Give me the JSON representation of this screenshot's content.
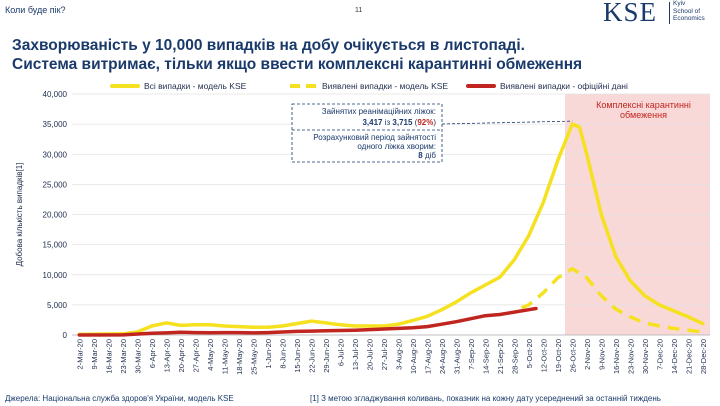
{
  "header": {
    "section": "Коли буде пік?",
    "page_number": "11"
  },
  "logo": {
    "mark": "KSE",
    "line1": "Kyiv",
    "line2": "School of",
    "line3": "Economics"
  },
  "title": {
    "line1": "Захворюваність у 10,000 випадків на добу очікується в листопаді.",
    "line2": "Система витримає, тільки якщо ввести комплексні карантинні обмеження"
  },
  "footer": {
    "source": "Джерела: Національна служба здоров'я України, модель KSE",
    "note": "[1] З метою згладжування коливань, показник на кожну дату усереднений за останній тиждень"
  },
  "chart_data": {
    "type": "line",
    "ylabel": "Добова кількість випадків[1]",
    "ylim": [
      0,
      40000
    ],
    "yticks": [
      0,
      5000,
      10000,
      15000,
      20000,
      25000,
      30000,
      35000,
      40000
    ],
    "ytick_labels": [
      "0",
      "5,000",
      "10,000",
      "15,000",
      "20,000",
      "25,000",
      "30,000",
      "35,000",
      "40,000"
    ],
    "x_tick_labels": [
      "2-Mar-20",
      "9-Mar-20",
      "16-Mar-20",
      "23-Mar-20",
      "30-Mar-20",
      "6-Apr-20",
      "13-Apr-20",
      "20-Apr-20",
      "27-Apr-20",
      "4-May-20",
      "11-May-20",
      "18-May-20",
      "25-May-20",
      "1-Jun-20",
      "8-Jun-20",
      "15-Jun-20",
      "22-Jun-20",
      "29-Jun-20",
      "6-Jul-20",
      "13-Jul-20",
      "20-Jul-20",
      "27-Jul-20",
      "3-Aug-20",
      "10-Aug-20",
      "17-Aug-20",
      "24-Aug-20",
      "31-Aug-20",
      "7-Sep-20",
      "14-Sep-20",
      "21-Sep-20",
      "28-Sep-20",
      "5-Oct-20",
      "12-Oct-20",
      "19-Oct-20",
      "26-Oct-20",
      "2-Nov-20",
      "9-Nov-20",
      "16-Nov-20",
      "23-Nov-20",
      "30-Nov-20",
      "7-Dec-20",
      "14-Dec-20",
      "21-Dec-20",
      "28-Dec-20"
    ],
    "legend_placement": "top",
    "series": [
      {
        "name": "Всі випадки - модель KSE",
        "color": "#f5e11f",
        "style": "solid",
        "points": [
          [
            0,
            100
          ],
          [
            3,
            200
          ],
          [
            4,
            500
          ],
          [
            5,
            1500
          ],
          [
            6,
            2000
          ],
          [
            7,
            1600
          ],
          [
            8,
            1700
          ],
          [
            9,
            1700
          ],
          [
            10,
            1500
          ],
          [
            11,
            1400
          ],
          [
            12,
            1300
          ],
          [
            13,
            1300
          ],
          [
            14,
            1500
          ],
          [
            15,
            1900
          ],
          [
            16,
            2300
          ],
          [
            17,
            2000
          ],
          [
            18,
            1700
          ],
          [
            19,
            1500
          ],
          [
            20,
            1500
          ],
          [
            21,
            1500
          ],
          [
            22,
            1800
          ],
          [
            23,
            2400
          ],
          [
            24,
            3100
          ],
          [
            25,
            4200
          ],
          [
            26,
            5500
          ],
          [
            27,
            7000
          ],
          [
            28,
            8300
          ],
          [
            29,
            9600
          ],
          [
            30,
            12500
          ],
          [
            31,
            16500
          ],
          [
            32,
            22000
          ],
          [
            33,
            29000
          ],
          [
            34,
            35000
          ],
          [
            34.5,
            34500
          ],
          [
            35,
            30000
          ],
          [
            36,
            20000
          ],
          [
            37,
            13000
          ],
          [
            38,
            9000
          ],
          [
            39,
            6500
          ],
          [
            40,
            5000
          ],
          [
            41,
            4000
          ],
          [
            42,
            3000
          ],
          [
            43,
            1900
          ]
        ]
      },
      {
        "name": "Виявлені випадки - модель KSE",
        "color": "#f5e11f",
        "style": "dashed",
        "points": [
          [
            30.5,
            4500
          ],
          [
            31,
            5000
          ],
          [
            32,
            7000
          ],
          [
            33,
            9500
          ],
          [
            34,
            11000
          ],
          [
            35,
            9500
          ],
          [
            36,
            6500
          ],
          [
            37,
            4300
          ],
          [
            38,
            3000
          ],
          [
            39,
            2000
          ],
          [
            40,
            1500
          ],
          [
            41,
            1100
          ],
          [
            42,
            800
          ],
          [
            43,
            500
          ]
        ]
      },
      {
        "name": "Виявлені випадки - офіційні дані",
        "color": "#c0261f",
        "style": "solid",
        "points": [
          [
            0,
            0
          ],
          [
            3,
            20
          ],
          [
            5,
            300
          ],
          [
            6,
            350
          ],
          [
            7,
            450
          ],
          [
            8,
            400
          ],
          [
            9,
            380
          ],
          [
            10,
            400
          ],
          [
            11,
            400
          ],
          [
            12,
            350
          ],
          [
            13,
            400
          ],
          [
            14,
            500
          ],
          [
            15,
            600
          ],
          [
            16,
            650
          ],
          [
            17,
            700
          ],
          [
            18,
            750
          ],
          [
            19,
            800
          ],
          [
            20,
            900
          ],
          [
            21,
            1000
          ],
          [
            22,
            1100
          ],
          [
            23,
            1200
          ],
          [
            24,
            1400
          ],
          [
            25,
            1800
          ],
          [
            26,
            2200
          ],
          [
            27,
            2700
          ],
          [
            28,
            3200
          ],
          [
            29,
            3400
          ],
          [
            30,
            3800
          ],
          [
            31,
            4200
          ],
          [
            31.5,
            4400
          ]
        ]
      }
    ],
    "shaded_region": {
      "from": 33.5,
      "to": 43.5,
      "label": "Комплексні карантинні обмеження",
      "color": "#f9d8d8"
    },
    "annotation": {
      "line1": "Зайнятих реанімаційних ліжок:",
      "line2_a": "3,417",
      "line2_b": " із ",
      "line2_c": "3,715",
      "line2_d": " (",
      "line2_e": "92%",
      "line2_f": ")",
      "line3": "Розрахунковий період зайнятості",
      "line4": "одного ліжка хворим:",
      "line5_a": "8",
      "line5_b": " діб",
      "point_to": [
        34,
        35500
      ]
    }
  }
}
